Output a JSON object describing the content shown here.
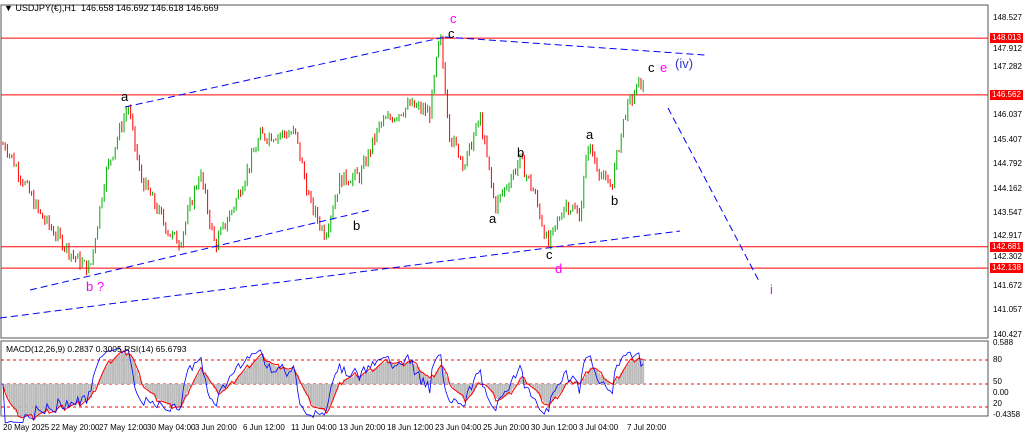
{
  "header": {
    "symbol": "USDJPY(€),H1",
    "ohlc": "146.658 146.692 146.618 146.669"
  },
  "indicator": {
    "label": "MACD(12,26,9) 0.2837 0.3005  RSI(14) 65.6793",
    "levels": [
      "80",
      "50",
      "20"
    ],
    "scale": [
      "0.588",
      "0.00",
      "-0.4358"
    ]
  },
  "chart_data": {
    "type": "candlestick",
    "timeframe": "H1",
    "colors": {
      "up": "#00b000",
      "down": "#ff0000",
      "levels": "#ff0000",
      "trendlines": "#0000ff",
      "wave_labels_primary": "#ff00ff",
      "wave_labels_minor": "#000000"
    },
    "yticks": [
      "148.527",
      "147.912",
      "147.282",
      "146.562",
      "146.037",
      "145.407",
      "144.792",
      "144.162",
      "143.547",
      "142.917",
      "142.302",
      "141.672",
      "141.057",
      "140.427"
    ],
    "ylim": [
      140.427,
      148.527
    ],
    "xticks": [
      "20 May 2025",
      "22 May 20:00",
      "27 May 12:00",
      "30 May 04:00",
      "3 Jun 20:00",
      "6 Jun 12:00",
      "11 Jun 04:00",
      "13 Jun 20:00",
      "18 Jun 12:00",
      "23 Jun 04:00",
      "25 Jun 20:00",
      "30 Jun 12:00",
      "3 Jul 04:00",
      "7 Jul 20:00"
    ],
    "approx_close_path": [
      145.3,
      143.5,
      142.4,
      142.1,
      144.5,
      146.3,
      144.5,
      143.0,
      142.8,
      144.6,
      142.7,
      143.8,
      145.5,
      145.6,
      143.8,
      143.0,
      144.4,
      144.5,
      145.8,
      146.3,
      146.1,
      148.1,
      145.5,
      144.8,
      146.0,
      143.7,
      144.9,
      144.0,
      142.7,
      143.8,
      143.5,
      145.3,
      144.3,
      144.3,
      146.1,
      146.9,
      146.669
    ],
    "horizontal_levels": [
      "148.013",
      "146.562",
      "142.681",
      "142.138"
    ],
    "wave_labels": [
      {
        "text": "c",
        "color": "#ff00ff"
      },
      {
        "text": "c",
        "color": "#000000"
      },
      {
        "text": "a",
        "color": "#000000"
      },
      {
        "text": "b ?",
        "color": "#ff00ff"
      },
      {
        "text": "b",
        "color": "#000000"
      },
      {
        "text": "a",
        "color": "#000000"
      },
      {
        "text": "b",
        "color": "#000000"
      },
      {
        "text": "c",
        "color": "#000000"
      },
      {
        "text": "d",
        "color": "#ff00ff"
      },
      {
        "text": "a",
        "color": "#000000"
      },
      {
        "text": "b",
        "color": "#000000"
      },
      {
        "text": "c",
        "color": "#000000"
      },
      {
        "text": "e",
        "color": "#ff00ff"
      },
      {
        "text": "(iv)",
        "color": "#3333cc"
      },
      {
        "text": "i",
        "color": "#ff00ff"
      }
    ]
  }
}
